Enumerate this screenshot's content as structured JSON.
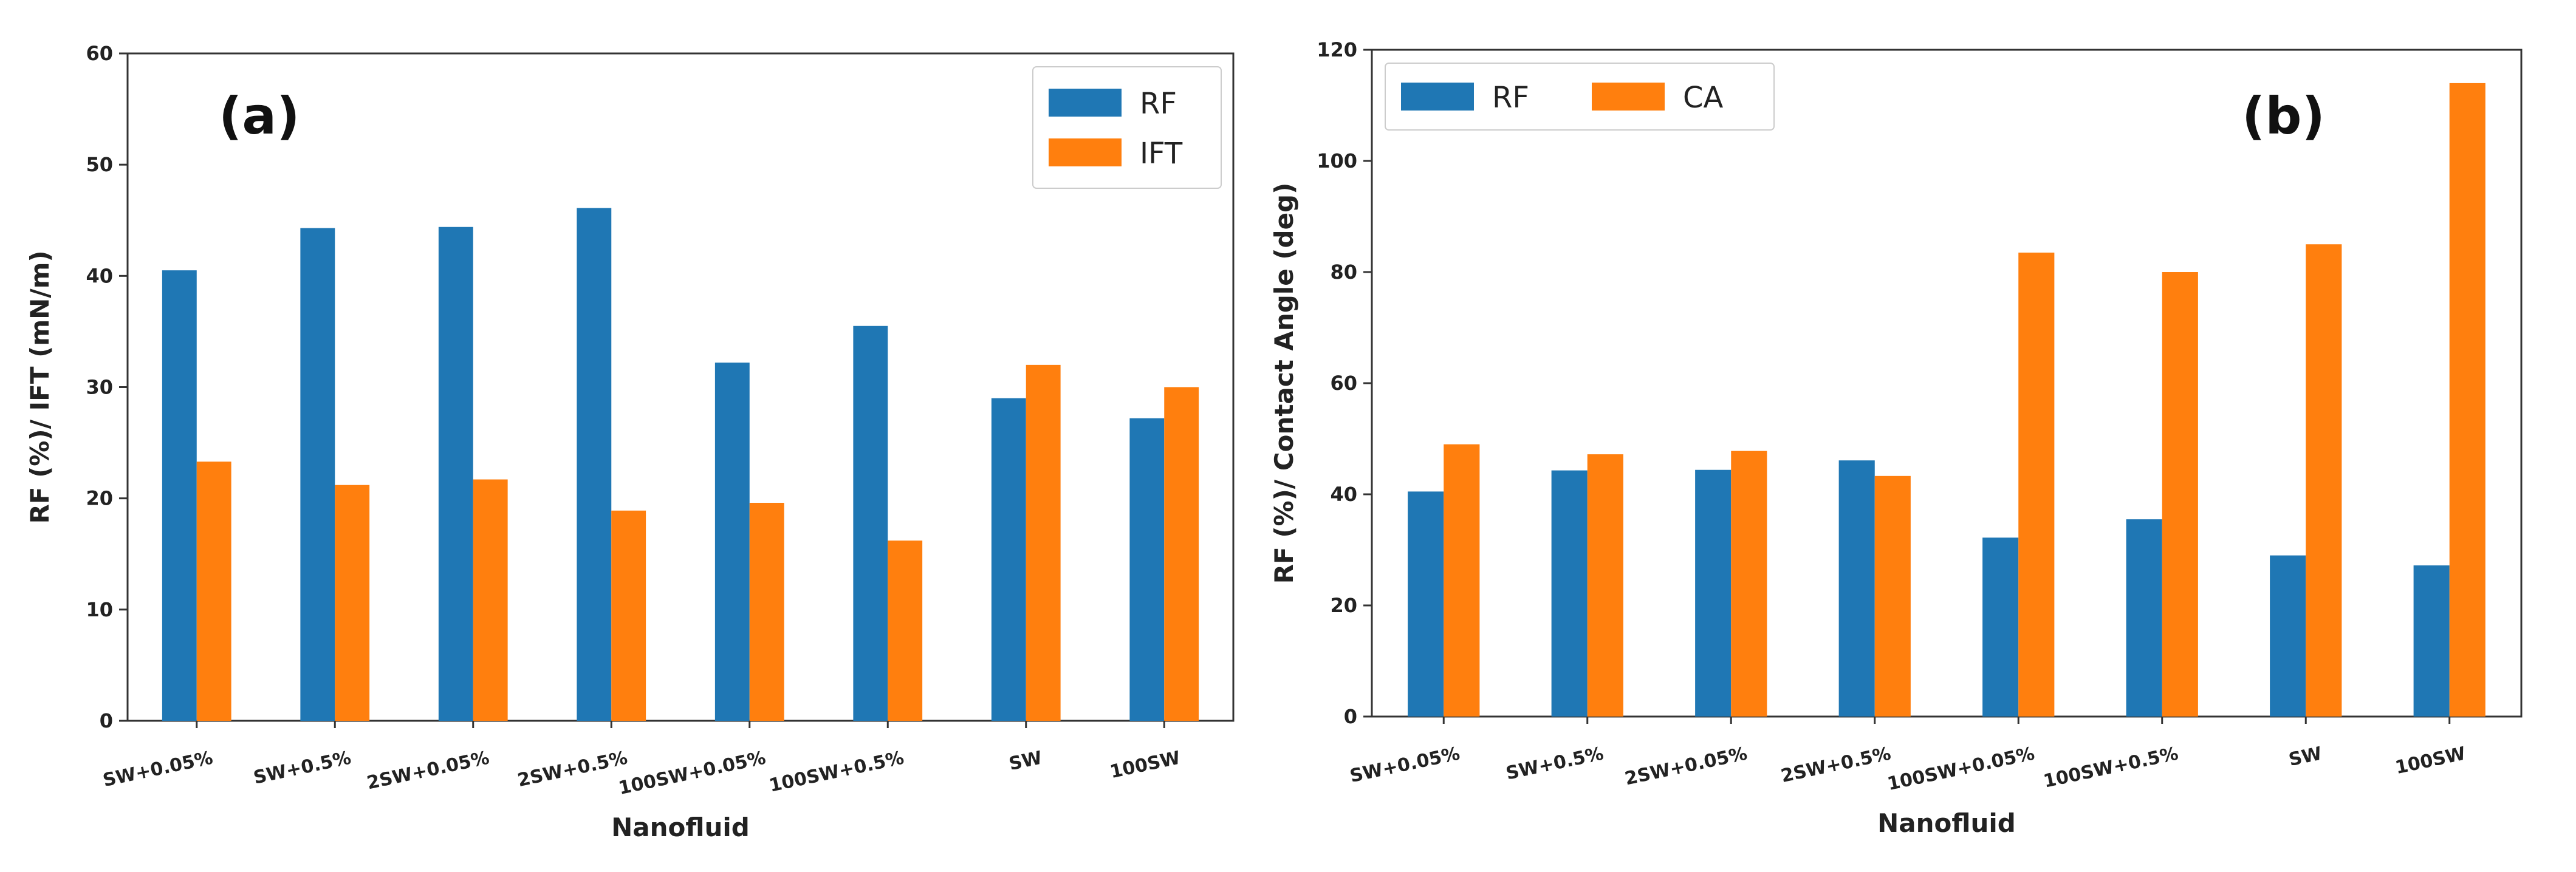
{
  "chart_data": [
    {
      "type": "bar",
      "panel_label": "(a)",
      "categories": [
        "SW+0.05%",
        "SW+0.5%",
        "2SW+0.05%",
        "2SW+0.5%",
        "100SW+0.05%",
        "100SW+0.5%",
        "SW",
        "100SW"
      ],
      "series": [
        {
          "name": "RF",
          "color": "#1f77b4",
          "values": [
            40.5,
            44.3,
            44.4,
            46.1,
            32.2,
            35.5,
            29.0,
            27.2
          ]
        },
        {
          "name": "IFT",
          "color": "#ff7f0e",
          "values": [
            23.3,
            21.2,
            21.7,
            18.9,
            19.6,
            16.2,
            32.0,
            30.0
          ]
        }
      ],
      "xlabel": "Nanofluid",
      "ylabel": "RF (%)/ IFT (mN/m)",
      "ylim": [
        0,
        60
      ],
      "yticks": [
        0,
        10,
        20,
        30,
        40,
        50,
        60
      ],
      "legend_position": "top-right"
    },
    {
      "type": "bar",
      "panel_label": "(b)",
      "categories": [
        "SW+0.05%",
        "SW+0.5%",
        "2SW+0.05%",
        "2SW+0.5%",
        "100SW+0.05%",
        "100SW+0.5%",
        "SW",
        "100SW"
      ],
      "series": [
        {
          "name": "RF",
          "color": "#1f77b4",
          "values": [
            40.5,
            44.3,
            44.4,
            46.1,
            32.2,
            35.5,
            29.0,
            27.2
          ]
        },
        {
          "name": "CA",
          "color": "#ff7f0e",
          "values": [
            49.0,
            47.2,
            47.8,
            43.3,
            83.5,
            80.0,
            85.0,
            114.0
          ]
        }
      ],
      "xlabel": "Nanofluid",
      "ylabel": "RF (%)/ Contact Angle (deg)",
      "ylim": [
        0,
        120
      ],
      "yticks": [
        0,
        20,
        40,
        60,
        80,
        100,
        120
      ],
      "legend_position": "top-left"
    }
  ]
}
